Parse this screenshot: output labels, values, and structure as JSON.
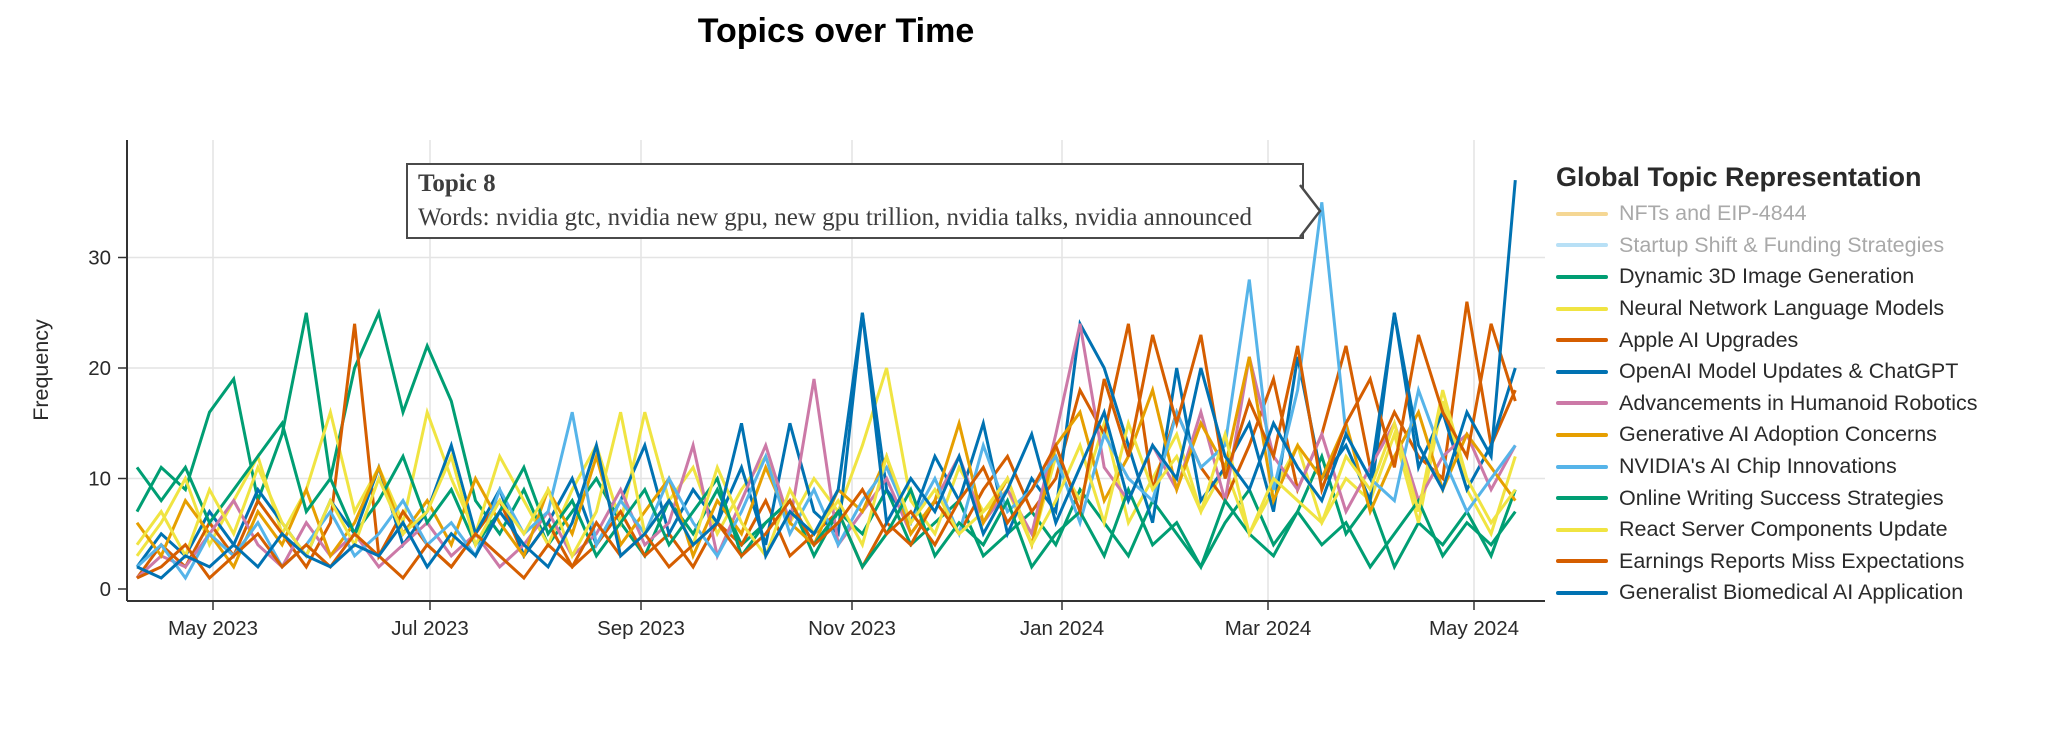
{
  "title": "Topics over Time",
  "y_axis": {
    "label": "Frequency",
    "ticks": [
      "0",
      "10",
      "20",
      "30"
    ]
  },
  "x_axis": {
    "ticks": [
      "May 2023",
      "Jul 2023",
      "Sep 2023",
      "Nov 2023",
      "Jan 2024",
      "Mar 2024",
      "May 2024"
    ]
  },
  "legend": {
    "title": "Global Topic Representation"
  },
  "tooltip": {
    "title": "Topic 8",
    "words": "Words: nvidia gtc, nvidia new gpu, new gpu trillion, nvidia talks, nvidia announced"
  },
  "colors": {
    "palette": [
      "#E69F00",
      "#56B4E9",
      "#009E73",
      "#F0E442",
      "#D55E00",
      "#0072B2",
      "#CC79A7"
    ],
    "grid": "#e4e4e4",
    "axis": "#333333",
    "tick_text": "#2a2a2a",
    "inactive_text": "#a9a9a9",
    "tooltip_border": "#4a4a4a"
  },
  "chart_data": {
    "type": "line",
    "title": "Topics over Time",
    "xlabel": "",
    "ylabel": "Frequency",
    "ylim": [
      0,
      40
    ],
    "grid": true,
    "legend_position": "right",
    "x": [
      "2023-04-09",
      "2023-04-16",
      "2023-04-23",
      "2023-04-30",
      "2023-05-07",
      "2023-05-14",
      "2023-05-21",
      "2023-05-28",
      "2023-06-04",
      "2023-06-11",
      "2023-06-18",
      "2023-06-25",
      "2023-07-02",
      "2023-07-09",
      "2023-07-16",
      "2023-07-23",
      "2023-07-30",
      "2023-08-06",
      "2023-08-13",
      "2023-08-20",
      "2023-08-27",
      "2023-09-03",
      "2023-09-10",
      "2023-09-17",
      "2023-09-24",
      "2023-10-01",
      "2023-10-08",
      "2023-10-15",
      "2023-10-22",
      "2023-10-29",
      "2023-11-05",
      "2023-11-12",
      "2023-11-19",
      "2023-11-26",
      "2023-12-03",
      "2023-12-10",
      "2023-12-17",
      "2023-12-24",
      "2023-12-31",
      "2024-01-07",
      "2024-01-14",
      "2024-01-21",
      "2024-01-28",
      "2024-02-04",
      "2024-02-11",
      "2024-02-18",
      "2024-02-25",
      "2024-03-03",
      "2024-03-10",
      "2024-03-17",
      "2024-03-24",
      "2024-03-31",
      "2024-04-07",
      "2024-04-14",
      "2024-04-21",
      "2024-04-28",
      "2024-05-05",
      "2024-05-12"
    ],
    "series": [
      {
        "name": "NFTs and EIP-4844",
        "color": "#E69F00",
        "visible": false,
        "values": []
      },
      {
        "name": "Startup Shift & Funding Strategies",
        "color": "#56B4E9",
        "visible": false,
        "values": []
      },
      {
        "name": "Dynamic 3D Image Generation",
        "color": "#009E73",
        "visible": true,
        "values": [
          7,
          11,
          9,
          16,
          19,
          8,
          14,
          25,
          10,
          20,
          25,
          16,
          22,
          17,
          8,
          5,
          9,
          4,
          7,
          10,
          6,
          3,
          8,
          5,
          9,
          4,
          6,
          8,
          3,
          7,
          5,
          9,
          4,
          6,
          8,
          3,
          5,
          7,
          4,
          9,
          6,
          3,
          8,
          5,
          2,
          6,
          9,
          4,
          7,
          12,
          5,
          8,
          2,
          6,
          4,
          7,
          3,
          9
        ]
      },
      {
        "name": "Neural Network Language Models",
        "color": "#F0E442",
        "visible": true,
        "values": [
          3,
          6,
          10,
          4,
          8,
          12,
          5,
          9,
          16,
          7,
          11,
          6,
          16,
          10,
          5,
          12,
          8,
          4,
          9,
          13,
          6,
          16,
          8,
          11,
          5,
          9,
          12,
          6,
          10,
          7,
          13,
          20,
          8,
          5,
          11,
          7,
          9,
          4,
          12,
          8,
          15,
          6,
          10,
          14,
          7,
          11,
          5,
          9,
          13,
          6,
          10,
          8,
          14,
          6,
          17,
          9,
          5,
          12
        ]
      },
      {
        "name": "Apple AI Upgrades",
        "color": "#D55E00",
        "visible": true,
        "values": [
          1,
          4,
          2,
          6,
          3,
          8,
          5,
          2,
          6,
          24,
          3,
          7,
          4,
          2,
          5,
          8,
          3,
          6,
          2,
          4,
          7,
          3,
          5,
          2,
          6,
          4,
          8,
          3,
          5,
          7,
          2,
          6,
          4,
          8,
          5,
          9,
          12,
          7,
          10,
          18,
          14,
          24,
          9,
          16,
          11,
          8,
          13,
          19,
          9,
          14,
          22,
          11,
          16,
          12,
          10,
          26,
          13,
          18
        ]
      },
      {
        "name": "OpenAI Model Updates & ChatGPT",
        "color": "#0072B2",
        "visible": true,
        "values": [
          2,
          5,
          3,
          7,
          4,
          9,
          6,
          3,
          8,
          5,
          11,
          4,
          7,
          13,
          5,
          9,
          3,
          6,
          10,
          4,
          8,
          13,
          5,
          9,
          6,
          11,
          4,
          15,
          7,
          5,
          25,
          9,
          6,
          12,
          8,
          15,
          5,
          10,
          7,
          24,
          20,
          13,
          6,
          20,
          8,
          11,
          15,
          7,
          21,
          10,
          13,
          8,
          25,
          11,
          16,
          9,
          13,
          20
        ]
      },
      {
        "name": "Advancements in Humanoid Robotics",
        "color": "#CC79A7",
        "visible": true,
        "values": [
          1,
          3,
          2,
          5,
          8,
          4,
          2,
          6,
          3,
          5,
          2,
          4,
          6,
          3,
          5,
          2,
          4,
          7,
          3,
          5,
          9,
          4,
          6,
          13,
          3,
          8,
          13,
          6,
          19,
          4,
          7,
          10,
          5,
          8,
          12,
          6,
          9,
          5,
          14,
          24,
          11,
          8,
          13,
          9,
          16,
          8,
          21,
          12,
          9,
          14,
          7,
          11,
          15,
          8,
          12,
          14,
          9,
          13
        ]
      },
      {
        "name": "Generative AI Adoption Concerns",
        "color": "#E69F00",
        "visible": true,
        "values": [
          6,
          3,
          8,
          5,
          2,
          7,
          4,
          9,
          3,
          6,
          11,
          5,
          8,
          4,
          10,
          6,
          3,
          9,
          5,
          12,
          4,
          7,
          10,
          3,
          8,
          5,
          11,
          6,
          4,
          9,
          7,
          12,
          5,
          8,
          15,
          6,
          10,
          4,
          13,
          16,
          8,
          12,
          18,
          9,
          15,
          11,
          21,
          8,
          13,
          10,
          15,
          7,
          12,
          16,
          9,
          14,
          11,
          8
        ]
      },
      {
        "name": "NVIDIA's AI Chip Innovations",
        "color": "#56B4E9",
        "visible": true,
        "values": [
          2,
          4,
          1,
          5,
          3,
          6,
          2,
          4,
          7,
          3,
          5,
          8,
          4,
          6,
          3,
          9,
          5,
          7,
          16,
          4,
          8,
          5,
          10,
          6,
          3,
          7,
          12,
          5,
          9,
          4,
          8,
          11,
          6,
          10,
          5,
          13,
          7,
          9,
          12,
          6,
          14,
          10,
          8,
          16,
          11,
          13,
          28,
          9,
          18,
          35,
          14,
          10,
          8,
          18,
          12,
          7,
          10,
          13
        ]
      },
      {
        "name": "Online Writing Success Strategies",
        "color": "#009E73",
        "visible": true,
        "values": [
          11,
          8,
          11,
          6,
          9,
          12,
          15,
          7,
          10,
          5,
          8,
          12,
          6,
          9,
          4,
          7,
          11,
          5,
          8,
          3,
          6,
          9,
          4,
          7,
          10,
          3,
          6,
          8,
          4,
          7,
          2,
          5,
          9,
          3,
          6,
          4,
          8,
          2,
          5,
          7,
          3,
          9,
          4,
          6,
          2,
          8,
          5,
          3,
          7,
          4,
          6,
          2,
          5,
          8,
          3,
          6,
          4,
          7
        ]
      },
      {
        "name": "React Server Components Update",
        "color": "#F0E442",
        "visible": true,
        "values": [
          4,
          7,
          3,
          9,
          5,
          11,
          6,
          3,
          8,
          4,
          10,
          5,
          7,
          12,
          4,
          8,
          5,
          9,
          3,
          7,
          16,
          5,
          8,
          4,
          11,
          6,
          3,
          9,
          5,
          8,
          4,
          12,
          6,
          9,
          5,
          7,
          10,
          4,
          8,
          13,
          6,
          15,
          9,
          12,
          7,
          14,
          5,
          10,
          8,
          6,
          12,
          9,
          15,
          7,
          18,
          10,
          6,
          9
        ]
      },
      {
        "name": "Earnings Reports Miss Expectations",
        "color": "#D55E00",
        "visible": true,
        "values": [
          1,
          2,
          4,
          1,
          3,
          5,
          2,
          4,
          2,
          5,
          3,
          1,
          4,
          2,
          5,
          3,
          1,
          4,
          2,
          6,
          3,
          5,
          2,
          4,
          6,
          3,
          5,
          8,
          4,
          6,
          9,
          5,
          7,
          4,
          8,
          11,
          6,
          9,
          13,
          7,
          19,
          12,
          23,
          15,
          23,
          10,
          17,
          12,
          22,
          9,
          15,
          19,
          11,
          23,
          16,
          12,
          24,
          17
        ]
      },
      {
        "name": "Generalist Biomedical AI Application",
        "color": "#0072B2",
        "visible": true,
        "values": [
          2,
          1,
          3,
          2,
          4,
          2,
          5,
          3,
          2,
          4,
          3,
          6,
          2,
          5,
          3,
          7,
          4,
          2,
          6,
          13,
          3,
          5,
          8,
          4,
          6,
          15,
          3,
          7,
          5,
          9,
          25,
          6,
          10,
          7,
          12,
          5,
          9,
          14,
          6,
          11,
          16,
          8,
          13,
          10,
          20,
          12,
          9,
          15,
          11,
          8,
          14,
          10,
          25,
          13,
          9,
          16,
          12,
          37
        ]
      }
    ]
  }
}
